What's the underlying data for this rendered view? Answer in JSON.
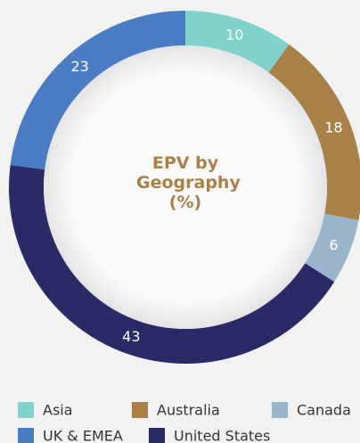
{
  "chart_data": {
    "type": "donut",
    "title": "EPV by Geography (%)",
    "categories": [
      "Asia",
      "Australia",
      "Canada",
      "United States",
      "UK & EMEA"
    ],
    "values": [
      10,
      18,
      6,
      43,
      23
    ],
    "colors": [
      "#7fd3cc",
      "#a98148",
      "#99b5cc",
      "#2a2a66",
      "#4a7cc4"
    ]
  }
}
